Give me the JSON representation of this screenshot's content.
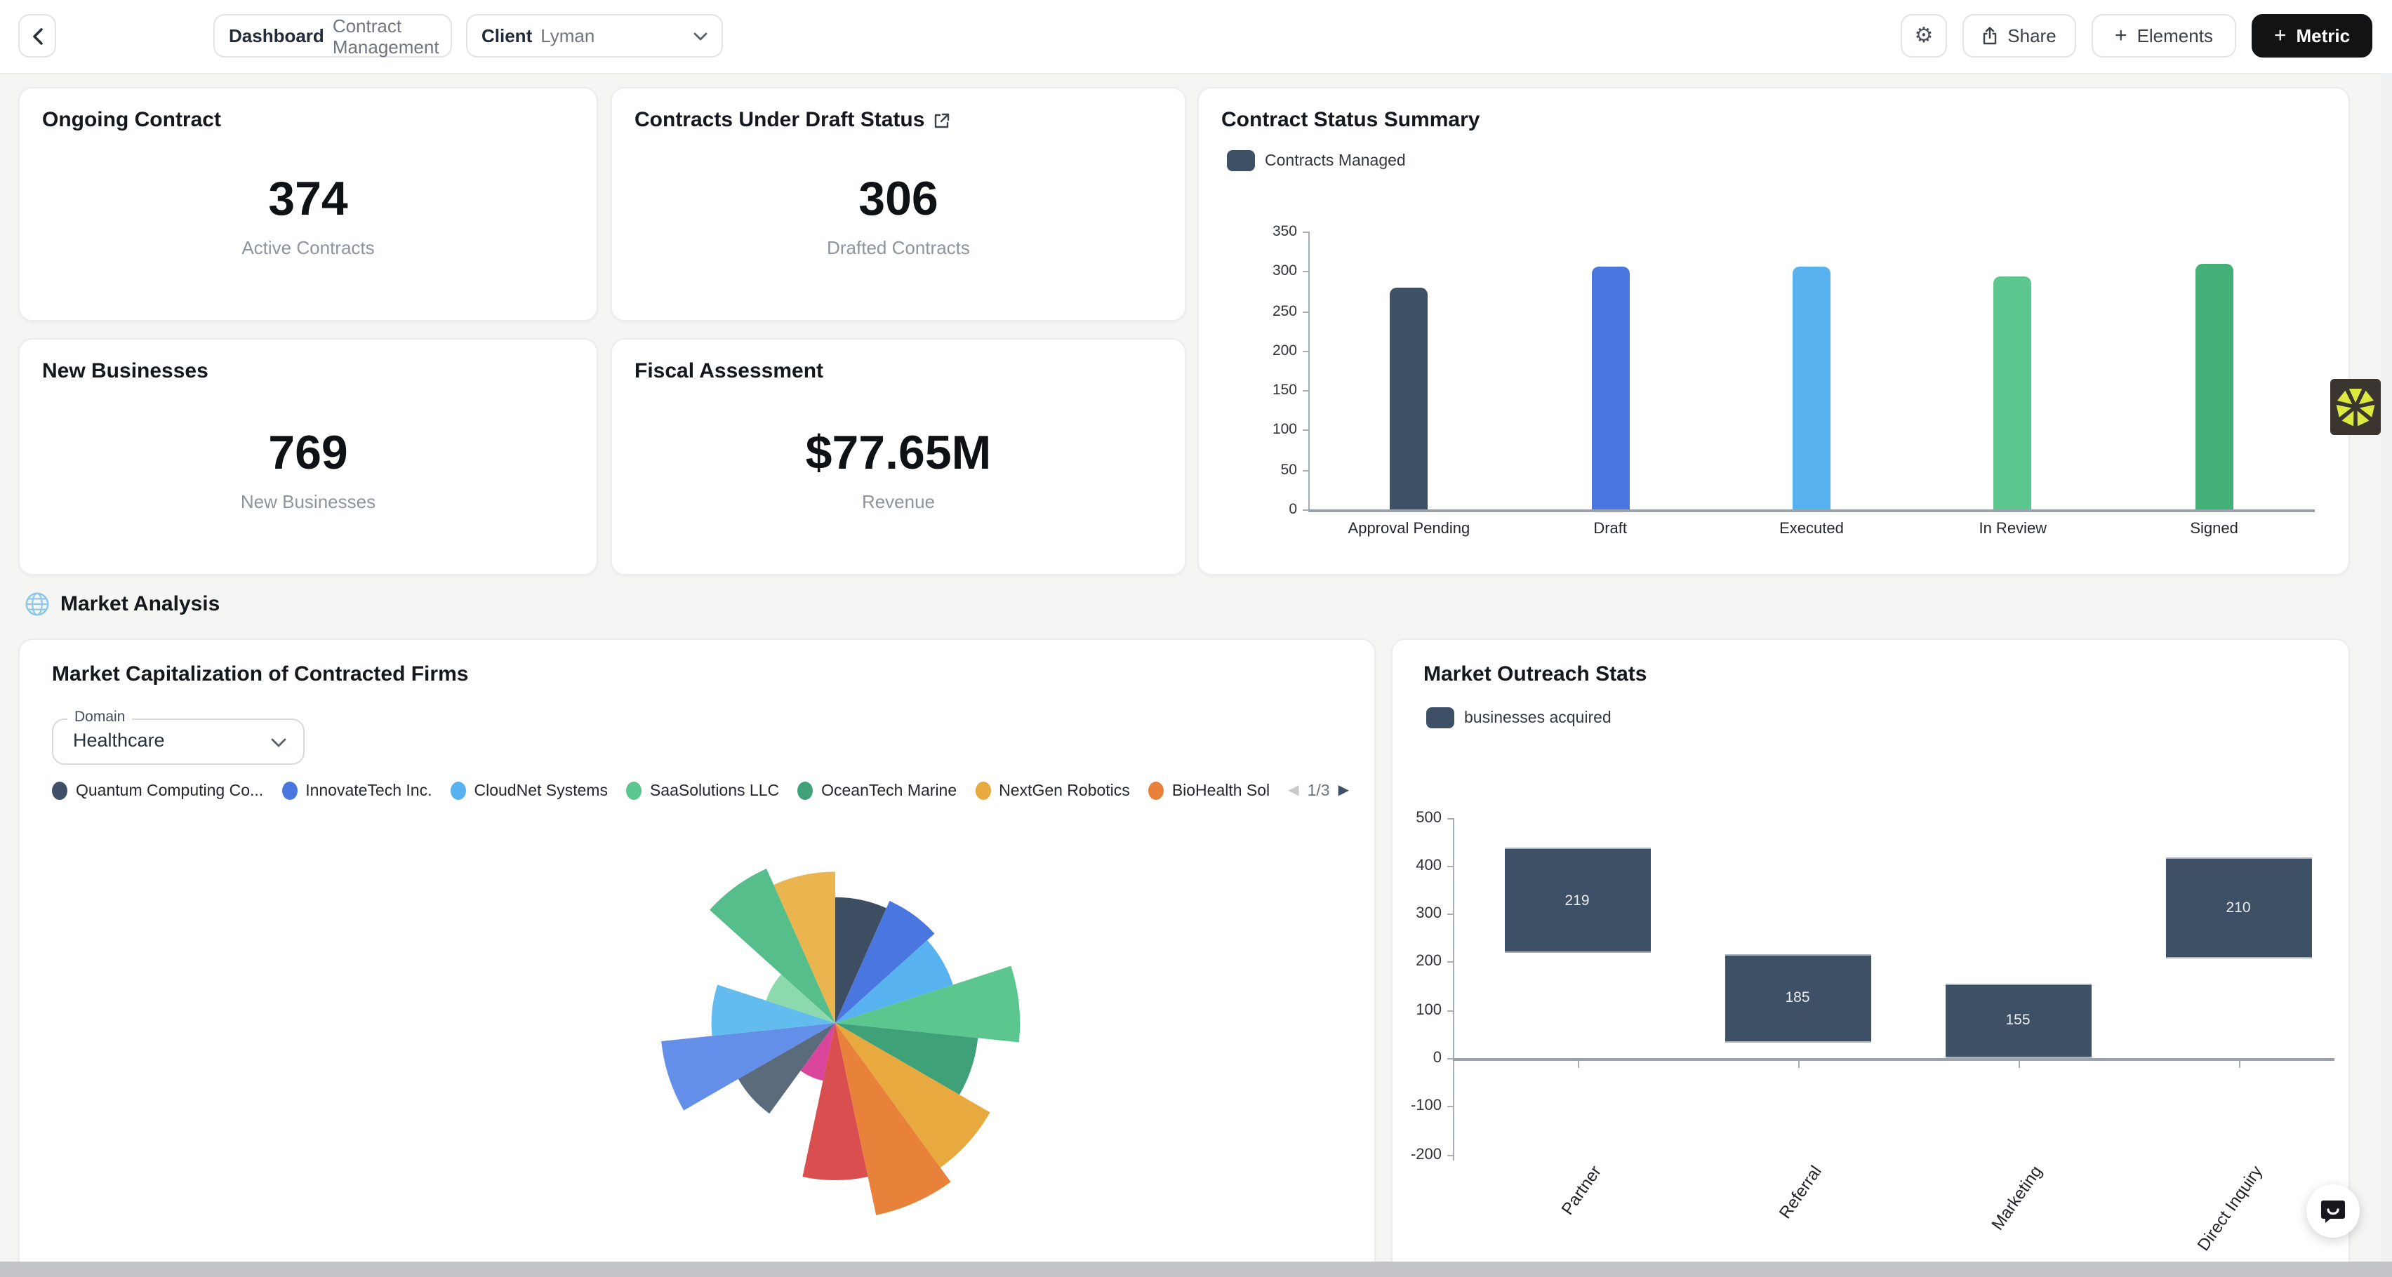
{
  "icons": {
    "plus": "+",
    "prev": "◀",
    "next": "▶"
  },
  "topbar": {
    "dashboard": {
      "label": "Dashboard",
      "value": "Contract Management"
    },
    "client": {
      "label": "Client",
      "value": "Lyman"
    },
    "share_label": "Share",
    "elements_label": "Elements",
    "metric_label": "Metric"
  },
  "stat_cards": [
    {
      "title": "Ongoing Contract",
      "value": "374",
      "caption": "Active Contracts"
    },
    {
      "title": "Contracts Under Draft Status",
      "value": "306",
      "caption": "Drafted Contracts"
    },
    {
      "title": "New Businesses",
      "value": "769",
      "caption": "New Businesses"
    },
    {
      "title": "Fiscal Assessment",
      "value": "$77.65M",
      "caption": "Revenue"
    }
  ],
  "contract_status": {
    "title": "Contract Status Summary",
    "legend_label": "Contracts Managed",
    "legend_color": "#3E5066",
    "chart_data": {
      "type": "bar",
      "categories": [
        "Approval Pending",
        "Draft",
        "Executed",
        "In Review",
        "Signed"
      ],
      "values": [
        280,
        305,
        306,
        294,
        310
      ],
      "bar_colors": [
        "#3E5066",
        "#4A77DF",
        "#57B2EF",
        "#5BC78F",
        "#43B077"
      ],
      "ylim": [
        0,
        350
      ],
      "yticks": [
        350,
        300,
        250,
        200,
        150,
        100,
        50,
        0
      ]
    }
  },
  "section_header": {
    "title": "Market Analysis"
  },
  "market_cap": {
    "title": "Market Capitalization of Contracted Firms",
    "domain_field": {
      "label": "Domain",
      "value": "Healthcare"
    },
    "legend": [
      {
        "label": "Quantum Computing Co...",
        "color": "#3E5066"
      },
      {
        "label": "InnovateTech Inc.",
        "color": "#4A77DF"
      },
      {
        "label": "CloudNet Systems",
        "color": "#57B2EF"
      },
      {
        "label": "SaaSolutions LLC",
        "color": "#5BC78F"
      },
      {
        "label": "OceanTech Marine",
        "color": "#3EA177"
      },
      {
        "label": "NextGen Robotics",
        "color": "#E8A93F"
      },
      {
        "label": "BioHealth Sol",
        "color": "#E8813A"
      }
    ],
    "pagination": {
      "page": "1/3"
    },
    "chart_data": {
      "type": "polar-area",
      "slices": [
        {
          "color": "#3D4E63",
          "value": 0.64
        },
        {
          "color": "#4A77DF",
          "value": 0.68
        },
        {
          "color": "#57B2EF",
          "value": 0.63
        },
        {
          "color": "#5BC78F",
          "value": 0.94
        },
        {
          "color": "#3EA177",
          "value": 0.73
        },
        {
          "color": "#E8A93F",
          "value": 0.91
        },
        {
          "color": "#E8813A",
          "value": 1.0
        },
        {
          "color": "#D94F4F",
          "value": 0.8
        },
        {
          "color": "#D9459B",
          "value": 0.3
        },
        {
          "color": "#5A6B7C",
          "value": 0.57
        },
        {
          "color": "#648FE8",
          "value": 0.89
        },
        {
          "color": "#62BDEE",
          "value": 0.63
        },
        {
          "color": "#8BD9AD",
          "value": 0.37
        },
        {
          "color": "#55BE8A",
          "value": 0.86
        },
        {
          "color": "#EAB44E",
          "value": 0.77
        }
      ]
    }
  },
  "market_outreach": {
    "title": "Market Outreach Stats",
    "legend_label": "businesses acquired",
    "legend_color": "#3E5066",
    "chart_data": {
      "type": "floating-bar",
      "categories": [
        "Partner",
        "Referral",
        "Marketing",
        "Direct Inquiry"
      ],
      "bars": [
        {
          "value": 219,
          "from": 218,
          "to": 437
        },
        {
          "value": 185,
          "from": 32,
          "to": 217
        },
        {
          "value": 155,
          "from": 0,
          "to": 155
        },
        {
          "value": 210,
          "from": 206,
          "to": 416
        }
      ],
      "bar_color": "#3E5066",
      "yticks": [
        500,
        400,
        300,
        200,
        100,
        0,
        -100,
        -200
      ],
      "ylim": [
        -200,
        500
      ]
    }
  },
  "widgets": {
    "brand_bg": "#3B352F",
    "brand_star": "#DCE93E"
  }
}
